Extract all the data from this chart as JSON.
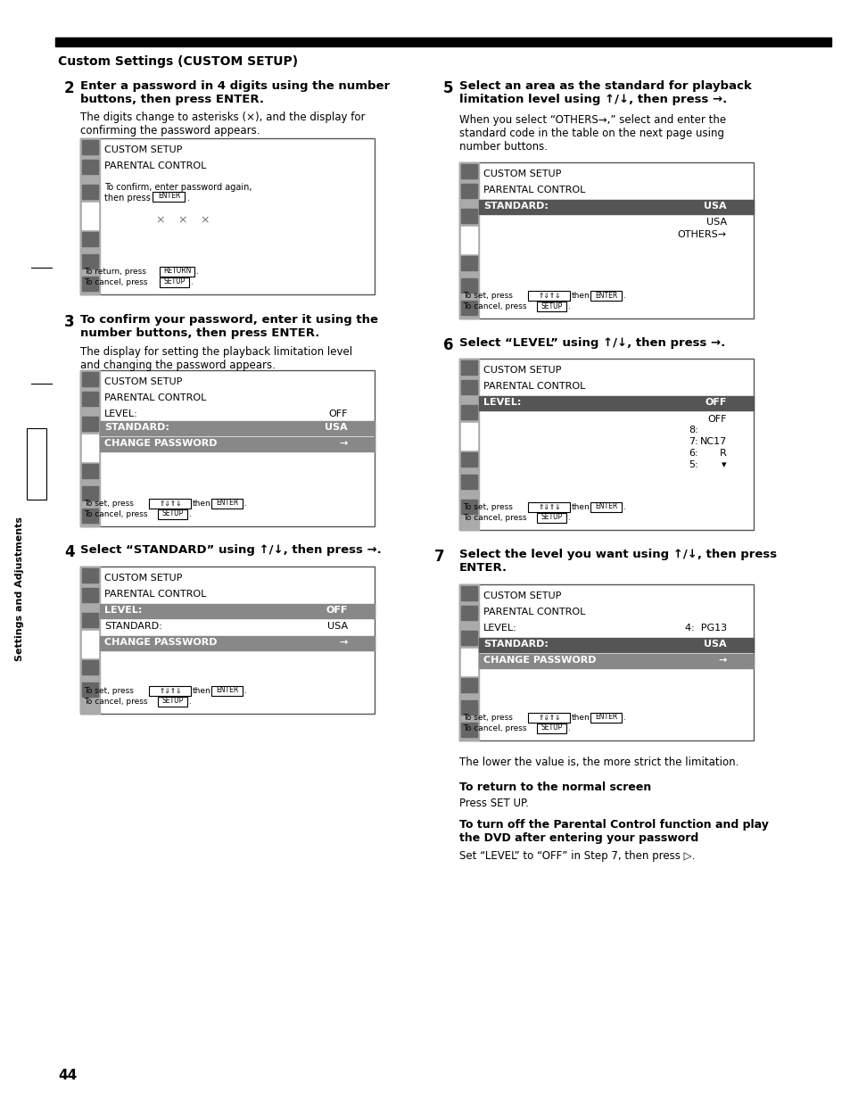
{
  "bg_color": "#ffffff",
  "page_number": "44",
  "sidebar_text": "Settings and Adjustments",
  "title": "Custom Settings (CUSTOM SETUP)"
}
